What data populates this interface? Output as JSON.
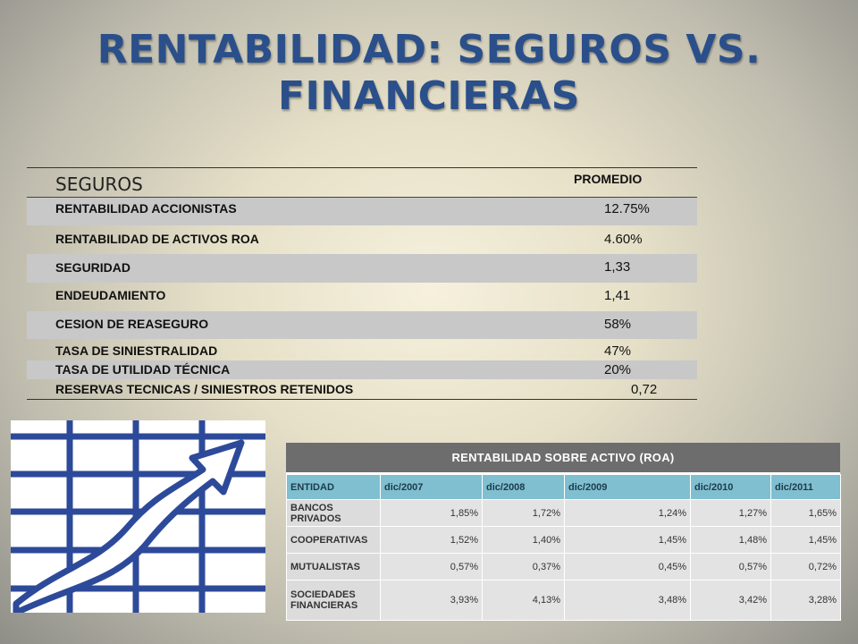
{
  "title": {
    "line1": "RENTABILIDAD: SEGUROS VS.",
    "line2": "FINANCIERAS"
  },
  "seguros_table": {
    "header_label": "SEGUROS",
    "header_value": "PROMEDIO",
    "rows": [
      {
        "label": "RENTABILIDAD ACCIONISTAS",
        "value": "12.75%"
      },
      {
        "label": "RENTABILIDAD DE ACTIVOS ROA",
        "value": "4.60%"
      },
      {
        "label": "SEGURIDAD",
        "value": "1,33"
      },
      {
        "label": "ENDEUDAMIENTO",
        "value": "1,41"
      },
      {
        "label": "CESION DE REASEGURO",
        "value": "58%"
      },
      {
        "label": "TASA DE SINIESTRALIDAD",
        "value": "47%"
      },
      {
        "label": "TASA DE UTILIDAD TÉCNICA",
        "value": "20%"
      },
      {
        "label": "RESERVAS TECNICAS  / SINIESTROS RETENIDOS",
        "value": "0,72"
      }
    ]
  },
  "roa_table": {
    "title": "RENTABILIDAD SOBRE ACTIVO (ROA)",
    "headers": [
      "ENTIDAD",
      "dic/2007",
      "dic/2008",
      "dic/2009",
      "dic/2010",
      "dic/2011"
    ],
    "rows": [
      {
        "entity": "BANCOS PRIVADOS",
        "values": [
          "1,85%",
          "1,72%",
          "1,24%",
          "1,27%",
          "1,65%"
        ]
      },
      {
        "entity": "COOPERATIVAS",
        "values": [
          "1,52%",
          "1,40%",
          "1,45%",
          "1,48%",
          "1,45%"
        ]
      },
      {
        "entity": "MUTUALISTAS",
        "values": [
          "0,57%",
          "0,37%",
          "0,45%",
          "0,57%",
          "0,72%"
        ]
      },
      {
        "entity": "SOCIEDADES FINANCIERAS",
        "values": [
          "3,93%",
          "4,13%",
          "3,48%",
          "3,42%",
          "3,28%"
        ]
      }
    ]
  },
  "illustration": {
    "icon": "growth-chart-icon",
    "color": "#2d4a9a"
  }
}
